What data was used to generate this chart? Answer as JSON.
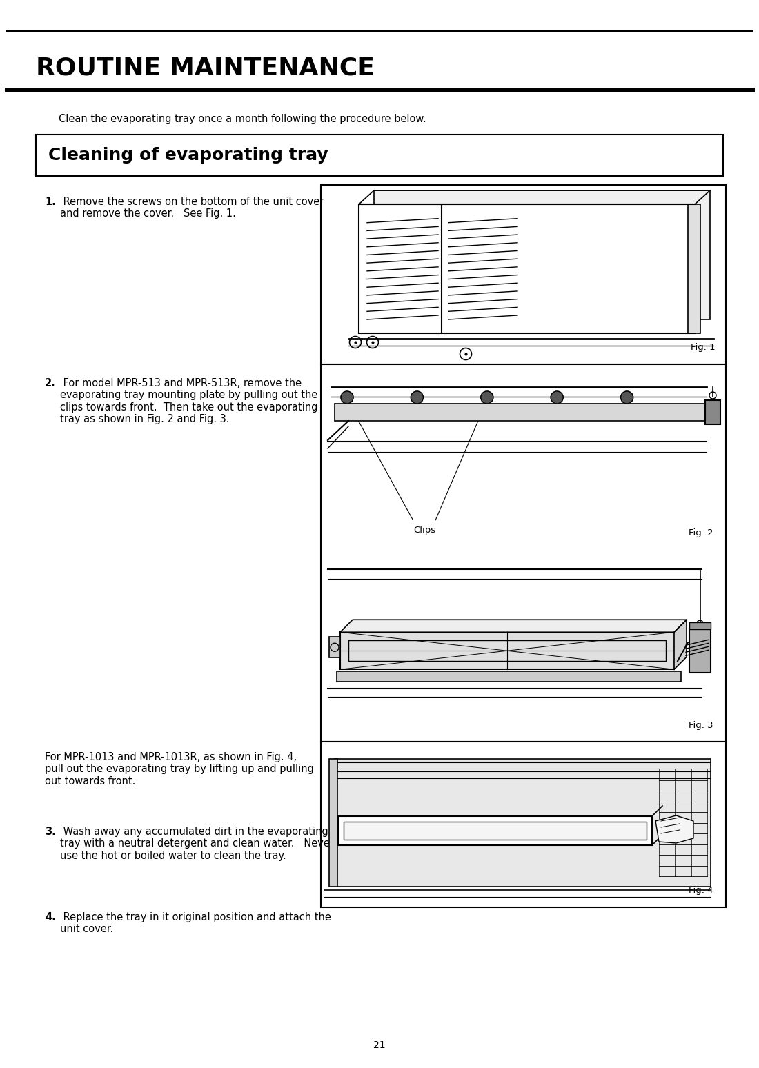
{
  "page_width": 10.8,
  "page_height": 15.28,
  "dpi": 100,
  "bg_color": "#ffffff",
  "text_color": "#000000",
  "title_main": "ROUTINE MAINTENANCE",
  "title_main_fontsize": 26,
  "intro_text": "Clean the evaporating tray once a month following the procedure below.",
  "body_fontsize": 10.5,
  "section_title": "Cleaning of evaporating tray",
  "section_title_fontsize": 18,
  "step1_bold": "1.",
  "step1_text": " Remove the screws on the bottom of the unit cover\nand remove the cover.   See Fig. 1.",
  "step1_fig": "Fig. 1",
  "step2_bold": "2.",
  "step2_text": " For model MPR-513 and MPR-513R, remove the\nevaporating tray mounting plate by pulling out the\nclips towards front.  Then take out the evaporating\ntray as shown in Fig. 2 and Fig. 3.",
  "step2_fig2": "Fig. 2",
  "step2_fig3": "Fig. 3",
  "clips_label": "Clips",
  "para_mpr1013": "For MPR-1013 and MPR-1013R, as shown in Fig. 4,\npull out the evaporating tray by lifting up and pulling\nout towards front.",
  "step3_bold": "3.",
  "step3_text": " Wash away any accumulated dirt in the evaporating\ntray with a neutral detergent and clean water.   Never\nuse the hot or boiled water to clean the tray.",
  "step3_fig": "Fig. 4",
  "step4_bold": "4.",
  "step4_text": " Replace the tray in it original position and attach the\nunit cover.",
  "page_number": "21"
}
